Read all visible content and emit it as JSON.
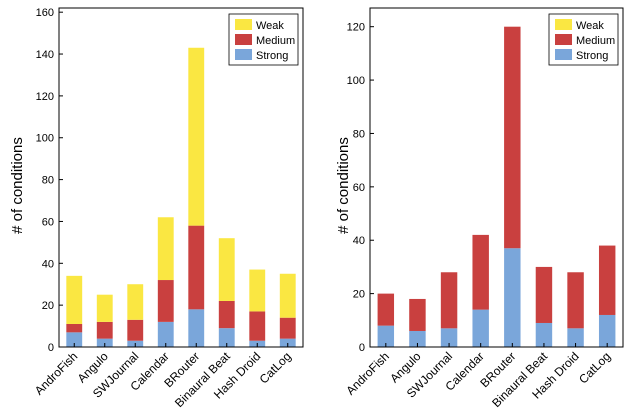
{
  "chart_data": [
    {
      "type": "bar",
      "stacked": true,
      "categories": [
        "AndroFish",
        "Angulo",
        "SWJournal",
        "Calendar",
        "BRouter",
        "Binaural Beat",
        "Hash Droid",
        "CatLog"
      ],
      "series": [
        {
          "name": "Strong",
          "color": "#7AA6DA",
          "values": [
            7,
            4,
            3,
            12,
            18,
            9,
            3,
            4
          ]
        },
        {
          "name": "Medium",
          "color": "#C9403F",
          "values": [
            4,
            8,
            10,
            20,
            40,
            13,
            14,
            10
          ]
        },
        {
          "name": "Weak",
          "color": "#FAE742",
          "values": [
            23,
            13,
            17,
            30,
            85,
            30,
            20,
            21
          ]
        }
      ],
      "xlabel": "",
      "ylabel": "# of conditions",
      "ylim": [
        0,
        162
      ],
      "yticks": [
        0,
        20,
        40,
        60,
        80,
        100,
        120,
        140,
        160
      ],
      "grid": false,
      "legend_position": "top-right"
    },
    {
      "type": "bar",
      "stacked": true,
      "categories": [
        "AndroFish",
        "Angulo",
        "SWJournal",
        "Calendar",
        "BRouter",
        "Binaural Beat",
        "Hash Droid",
        "CatLog"
      ],
      "series": [
        {
          "name": "Strong",
          "color": "#7AA6DA",
          "values": [
            8,
            6,
            7,
            14,
            37,
            9,
            7,
            12
          ]
        },
        {
          "name": "Medium",
          "color": "#C9403F",
          "values": [
            12,
            12,
            21,
            28,
            83,
            21,
            21,
            26
          ]
        },
        {
          "name": "Weak",
          "color": "#FAE742",
          "values": [
            0,
            0,
            0,
            0,
            0,
            0,
            0,
            0
          ]
        }
      ],
      "xlabel": "",
      "ylabel": "# of conditions",
      "ylim": [
        0,
        127
      ],
      "yticks": [
        0,
        20,
        40,
        60,
        80,
        100,
        120
      ],
      "grid": false,
      "legend_position": "top-right"
    }
  ]
}
